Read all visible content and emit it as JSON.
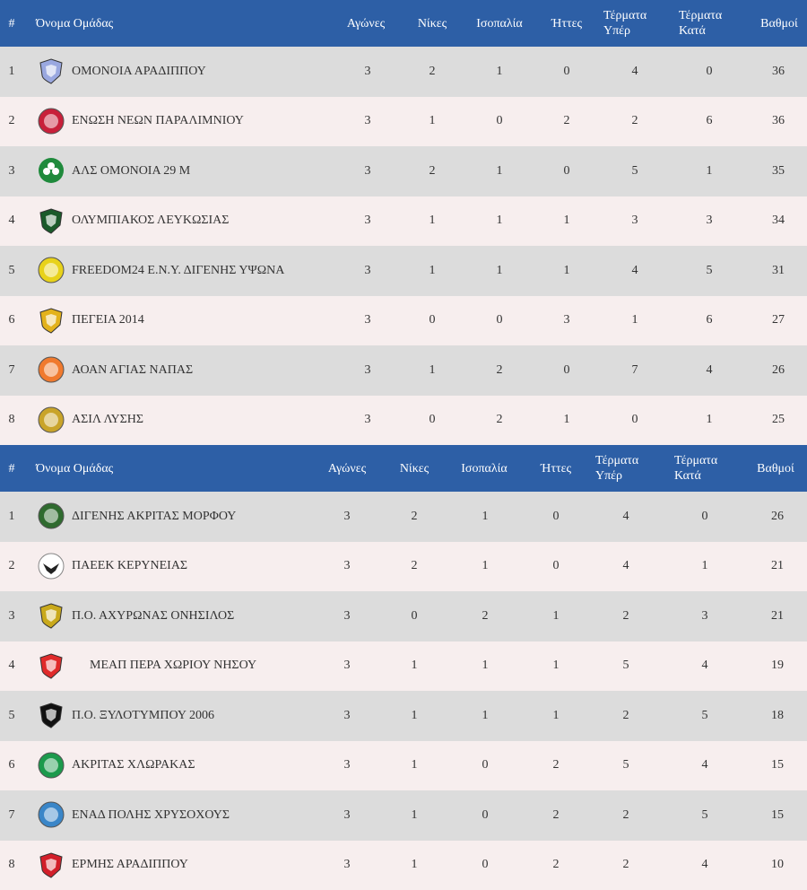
{
  "tables": [
    {
      "headers": {
        "pos": "#",
        "name": "Όνομα Ομάδας",
        "played": "Αγώνες",
        "wins": "Νίκες",
        "draws": "Ισοπαλία",
        "losses": "Ήττες",
        "gf1": "Τέρματα",
        "gf2": "Υπέρ",
        "ga1": "Τέρματα",
        "ga2": "Κατά",
        "pts": "Βαθμοί"
      },
      "rows": [
        {
          "pos": "1",
          "name": "ΟΜΟΝΟΙΑ ΑΡΑΔΙΠΠΟΥ",
          "played": "3",
          "wins": "2",
          "draws": "1",
          "losses": "0",
          "gf": "4",
          "ga": "0",
          "pts": "36",
          "logo_color": "#9aa8e0",
          "logo_icon": "shield-logo-icon"
        },
        {
          "pos": "2",
          "name": "ΕΝΩΣΗ ΝΕΩΝ ΠΑΡΑΛΙΜΝΙΟΥ",
          "played": "3",
          "wins": "1",
          "draws": "0",
          "losses": "2",
          "gf": "2",
          "ga": "6",
          "pts": "36",
          "logo_color": "#c8203a",
          "logo_icon": "circle-logo-icon"
        },
        {
          "pos": "3",
          "name": "ΑΛΣ ΟΜΟΝΟΙΑ 29 Μ",
          "played": "3",
          "wins": "2",
          "draws": "1",
          "losses": "0",
          "gf": "5",
          "ga": "1",
          "pts": "35",
          "logo_color": "#1f8a3c",
          "logo_icon": "clover-logo-icon"
        },
        {
          "pos": "4",
          "name": "ΟΛΥΜΠΙΑΚΟΣ ΛΕΥΚΩΣΙΑΣ",
          "played": "3",
          "wins": "1",
          "draws": "1",
          "losses": "1",
          "gf": "3",
          "ga": "3",
          "pts": "34",
          "logo_color": "#1a5a2a",
          "logo_icon": "shield-logo-icon"
        },
        {
          "pos": "5",
          "name": "FREEDOM24 Ε.Ν.Υ. ΔΙΓΕΝΗΣ ΥΨΩΝΑ",
          "played": "3",
          "wins": "1",
          "draws": "1",
          "losses": "1",
          "gf": "4",
          "ga": "5",
          "pts": "31",
          "logo_color": "#e8d21a",
          "logo_icon": "circle-logo-icon"
        },
        {
          "pos": "6",
          "name": "ΠΕΓΕΙΑ 2014",
          "played": "3",
          "wins": "0",
          "draws": "0",
          "losses": "3",
          "gf": "1",
          "ga": "6",
          "pts": "27",
          "logo_color": "#e3b21c",
          "logo_icon": "shield-logo-icon"
        },
        {
          "pos": "7",
          "name": "ΑΟΑΝ ΑΓΙΑΣ ΝΑΠΑΣ",
          "played": "3",
          "wins": "1",
          "draws": "2",
          "losses": "0",
          "gf": "7",
          "ga": "4",
          "pts": "26",
          "logo_color": "#f07a2e",
          "logo_icon": "circle-logo-icon"
        },
        {
          "pos": "8",
          "name": "ΑΣΙΛ ΛΥΣΗΣ",
          "played": "3",
          "wins": "0",
          "draws": "2",
          "losses": "1",
          "gf": "0",
          "ga": "1",
          "pts": "25",
          "logo_color": "#c9a42a",
          "logo_icon": "circle-logo-icon"
        }
      ]
    },
    {
      "headers": {
        "pos": "#",
        "name": "Όνομα Ομάδας",
        "played": "Αγώνες",
        "wins": "Νίκες",
        "draws": "Ισοπαλία",
        "losses": "Ήττες",
        "gf1": "Τέρματα",
        "gf2": "Υπέρ",
        "ga1": "Τέρματα",
        "ga2": "Κατά",
        "pts": "Βαθμοί"
      },
      "rows": [
        {
          "pos": "1",
          "name": "ΔΙΓΕΝΗΣ ΑΚΡΙΤΑΣ ΜΟΡΦΟΥ",
          "played": "3",
          "wins": "2",
          "draws": "1",
          "losses": "0",
          "gf": "4",
          "ga": "0",
          "pts": "26",
          "logo_color": "#2f6b2f",
          "logo_icon": "circle-logo-icon"
        },
        {
          "pos": "2",
          "name": "ΠΑΕΕΚ ΚΕΡΥΝΕΙΑΣ",
          "played": "3",
          "wins": "2",
          "draws": "1",
          "losses": "0",
          "gf": "4",
          "ga": "1",
          "pts": "21",
          "logo_color": "#222222",
          "logo_icon": "eagle-logo-icon"
        },
        {
          "pos": "3",
          "name": "Π.Ο. ΑΧΥΡΩΝΑΣ ΟΝΗΣΙΛΟΣ",
          "played": "3",
          "wins": "0",
          "draws": "2",
          "losses": "1",
          "gf": "2",
          "ga": "3",
          "pts": "21",
          "logo_color": "#c9a91c",
          "logo_icon": "shield-logo-icon"
        },
        {
          "pos": "4",
          "name": "ΜΕΑΠ ΠΕΡΑ ΧΩΡΙΟΥ ΝΗΣΟΥ",
          "played": "3",
          "wins": "1",
          "draws": "1",
          "losses": "1",
          "gf": "5",
          "ga": "4",
          "pts": "19",
          "logo_color": "#e02b2b",
          "logo_icon": "shield-logo-icon"
        },
        {
          "pos": "5",
          "name": "Π.Ο. ΞΥΛΟΤΥΜΠΟΥ 2006",
          "played": "3",
          "wins": "1",
          "draws": "1",
          "losses": "1",
          "gf": "2",
          "ga": "5",
          "pts": "18",
          "logo_color": "#111111",
          "logo_icon": "shield-logo-icon"
        },
        {
          "pos": "6",
          "name": "ΑΚΡΙΤΑΣ ΧΛΩΡΑΚΑΣ",
          "played": "3",
          "wins": "1",
          "draws": "0",
          "losses": "2",
          "gf": "5",
          "ga": "4",
          "pts": "15",
          "logo_color": "#1c9a4c",
          "logo_icon": "circle-logo-icon"
        },
        {
          "pos": "7",
          "name": "ΕΝΑΔ ΠΟΛΗΣ ΧΡΥΣΟΧΟΥΣ",
          "played": "3",
          "wins": "1",
          "draws": "0",
          "losses": "2",
          "gf": "2",
          "ga": "5",
          "pts": "15",
          "logo_color": "#3a86c8",
          "logo_icon": "circle-logo-icon"
        },
        {
          "pos": "8",
          "name": "ΕΡΜΗΣ ΑΡΑΔΙΠΠΟΥ",
          "played": "3",
          "wins": "1",
          "draws": "0",
          "losses": "2",
          "gf": "2",
          "ga": "4",
          "pts": "10",
          "logo_color": "#d21f2a",
          "logo_icon": "shield-logo-icon"
        }
      ]
    }
  ]
}
